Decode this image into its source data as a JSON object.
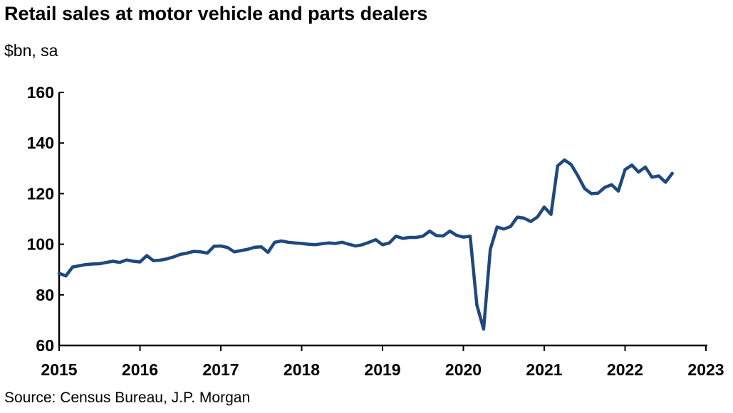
{
  "chart_data": {
    "type": "line",
    "title": "Retail sales at motor vehicle and parts dealers",
    "subtitle": "$bn, sa",
    "source": "Source: Census Bureau, J.P. Morgan",
    "xlabel": "",
    "ylabel": "$bn, sa",
    "ylim": [
      60,
      160
    ],
    "yticks": [
      "60",
      "80",
      "100",
      "120",
      "140",
      "160"
    ],
    "xlim": [
      2015,
      2023
    ],
    "xticks": [
      "2015",
      "2016",
      "2017",
      "2018",
      "2019",
      "2020",
      "2021",
      "2022",
      "2023"
    ],
    "grid": false,
    "color": "#1F497D",
    "series": [
      {
        "name": "Retail sales at motor vehicle and parts dealers",
        "start": "2015-01",
        "frequency": "monthly",
        "values": [
          88.5,
          87.5,
          91,
          91.5,
          92,
          92.2,
          92.3,
          92.8,
          93.3,
          92.8,
          93.8,
          93.3,
          93,
          95.5,
          93.5,
          93.7,
          94.2,
          95,
          96,
          96.5,
          97.2,
          97,
          96.5,
          99.2,
          99.3,
          98.7,
          97,
          97.5,
          98,
          98.8,
          99,
          96.8,
          100.8,
          101.3,
          100.8,
          100.5,
          100.3,
          100,
          99.8,
          100.2,
          100.5,
          100.3,
          100.8,
          100,
          99.3,
          99.8,
          100.8,
          101.8,
          99.8,
          100.5,
          103.2,
          102.3,
          102.7,
          102.7,
          103.2,
          105.2,
          103.4,
          103.3,
          105.2,
          103.5,
          102.8,
          103.2,
          76,
          66.5,
          98,
          106.8,
          106,
          107,
          110.7,
          110.3,
          109,
          110.8,
          114.7,
          111.8,
          131,
          133.3,
          131.5,
          127,
          122,
          120,
          120.2,
          122.5,
          123.5,
          121,
          129.5,
          131.3,
          128.5,
          130.5,
          126.5,
          127,
          124.5,
          128
        ]
      }
    ]
  }
}
